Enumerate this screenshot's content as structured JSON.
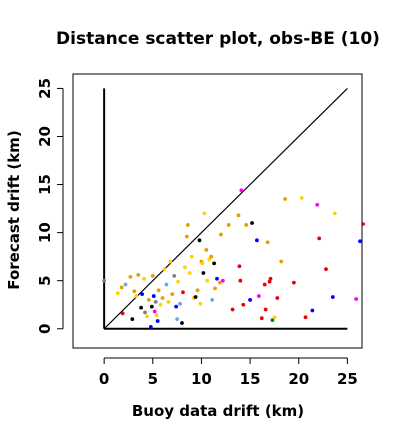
{
  "chart_data": {
    "type": "scatter",
    "title": "Distance scatter plot, obs-BE (10)",
    "xlabel": "Buoy data drift (km)",
    "ylabel": "Forecast drift (km)",
    "xlim": [
      -3.2,
      26.5
    ],
    "ylim": [
      -2.0,
      26.5
    ],
    "xticks": [
      0,
      5,
      10,
      15,
      20,
      25
    ],
    "yticks": [
      0,
      5,
      10,
      15,
      20,
      25
    ],
    "xtick_labels": [
      "0",
      "5",
      "10",
      "15",
      "20",
      "25"
    ],
    "ytick_labels": [
      "0",
      "5",
      "10",
      "15",
      "20",
      "25"
    ],
    "grid": false,
    "reference_lines": [
      {
        "name": "identity",
        "x": [
          0,
          25
        ],
        "y": [
          0,
          25
        ]
      },
      {
        "name": "x-zero",
        "x": [
          0,
          0
        ],
        "y": [
          0,
          25
        ]
      },
      {
        "name": "y-zero",
        "x": [
          0,
          25
        ],
        "y": [
          0,
          0
        ]
      }
    ],
    "points": [
      {
        "x": 0.0,
        "y": 5.0,
        "color": "#7f7f7f"
      },
      {
        "x": 1.4,
        "y": 3.7,
        "color": "#ffd200"
      },
      {
        "x": 1.8,
        "y": 4.3,
        "color": "#e69f00"
      },
      {
        "x": 1.9,
        "y": 1.6,
        "color": "#e8000b"
      },
      {
        "x": 2.2,
        "y": 4.6,
        "color": "#6aa6e8"
      },
      {
        "x": 2.7,
        "y": 5.4,
        "color": "#e69f00"
      },
      {
        "x": 2.9,
        "y": 1.0,
        "color": "#000000"
      },
      {
        "x": 3.1,
        "y": 3.9,
        "color": "#e69f00"
      },
      {
        "x": 3.3,
        "y": 3.4,
        "color": "#ffd200"
      },
      {
        "x": 3.5,
        "y": 5.6,
        "color": "#e69f00"
      },
      {
        "x": 3.8,
        "y": 2.2,
        "color": "#000000"
      },
      {
        "x": 3.9,
        "y": 3.6,
        "color": "#0000ff"
      },
      {
        "x": 4.1,
        "y": 5.2,
        "color": "#ffd200"
      },
      {
        "x": 4.2,
        "y": 1.7,
        "color": "#7f7f7f"
      },
      {
        "x": 4.4,
        "y": 1.3,
        "color": "#ffd200"
      },
      {
        "x": 4.6,
        "y": 3.0,
        "color": "#e69f00"
      },
      {
        "x": 4.8,
        "y": 0.2,
        "color": "#0000ff"
      },
      {
        "x": 4.9,
        "y": 2.3,
        "color": "#000000"
      },
      {
        "x": 5.0,
        "y": 5.5,
        "color": "#e69f00"
      },
      {
        "x": 5.1,
        "y": 3.4,
        "color": "#0000ff"
      },
      {
        "x": 5.2,
        "y": 1.8,
        "color": "#ff00ff"
      },
      {
        "x": 5.3,
        "y": 2.8,
        "color": "#7f7f7f"
      },
      {
        "x": 5.4,
        "y": 1.4,
        "color": "#ffd200"
      },
      {
        "x": 5.5,
        "y": 0.8,
        "color": "#0000ff"
      },
      {
        "x": 5.6,
        "y": 4.0,
        "color": "#e69f00"
      },
      {
        "x": 5.8,
        "y": 2.5,
        "color": "#ffd200"
      },
      {
        "x": 6.0,
        "y": 3.2,
        "color": "#e69f00"
      },
      {
        "x": 6.2,
        "y": 6.2,
        "color": "#ffd200"
      },
      {
        "x": 6.4,
        "y": 4.6,
        "color": "#6aa6e8"
      },
      {
        "x": 6.6,
        "y": 2.8,
        "color": "#ffd200"
      },
      {
        "x": 6.8,
        "y": 7.0,
        "color": "#ffd200"
      },
      {
        "x": 7.0,
        "y": 3.6,
        "color": "#e69f00"
      },
      {
        "x": 7.2,
        "y": 5.5,
        "color": "#7f7f7f"
      },
      {
        "x": 7.4,
        "y": 2.3,
        "color": "#0000ff"
      },
      {
        "x": 7.5,
        "y": 1.0,
        "color": "#6aa6e8"
      },
      {
        "x": 7.6,
        "y": 4.9,
        "color": "#ffd200"
      },
      {
        "x": 7.8,
        "y": 2.6,
        "color": "#6aa6e8"
      },
      {
        "x": 8.0,
        "y": 0.6,
        "color": "#000000"
      },
      {
        "x": 8.1,
        "y": 3.8,
        "color": "#e8000b"
      },
      {
        "x": 8.3,
        "y": 6.4,
        "color": "#ffd200"
      },
      {
        "x": 8.5,
        "y": 9.6,
        "color": "#e69f00"
      },
      {
        "x": 8.6,
        "y": 10.8,
        "color": "#e69f00"
      },
      {
        "x": 8.8,
        "y": 5.8,
        "color": "#ffd200"
      },
      {
        "x": 9.0,
        "y": 7.5,
        "color": "#ffd200"
      },
      {
        "x": 9.2,
        "y": 3.2,
        "color": "#ffd200"
      },
      {
        "x": 9.4,
        "y": 3.3,
        "color": "#000000"
      },
      {
        "x": 9.6,
        "y": 4.0,
        "color": "#e69f00"
      },
      {
        "x": 9.8,
        "y": 9.2,
        "color": "#000000"
      },
      {
        "x": 9.9,
        "y": 2.6,
        "color": "#ffd200"
      },
      {
        "x": 10.0,
        "y": 7.0,
        "color": "#e69f00"
      },
      {
        "x": 10.1,
        "y": 6.8,
        "color": "#ffd200"
      },
      {
        "x": 10.2,
        "y": 5.8,
        "color": "#000000"
      },
      {
        "x": 10.3,
        "y": 12.0,
        "color": "#ffd200"
      },
      {
        "x": 10.5,
        "y": 8.2,
        "color": "#e69f00"
      },
      {
        "x": 10.6,
        "y": 5.0,
        "color": "#ffd200"
      },
      {
        "x": 10.8,
        "y": 7.2,
        "color": "#ffd200"
      },
      {
        "x": 11.0,
        "y": 7.5,
        "color": "#e69f00"
      },
      {
        "x": 11.1,
        "y": 3.0,
        "color": "#6aa6e8"
      },
      {
        "x": 11.3,
        "y": 6.8,
        "color": "#000000"
      },
      {
        "x": 11.4,
        "y": 4.2,
        "color": "#e69f00"
      },
      {
        "x": 11.6,
        "y": 5.2,
        "color": "#0000ff"
      },
      {
        "x": 11.9,
        "y": 4.8,
        "color": "#e69f00"
      },
      {
        "x": 12.0,
        "y": 9.8,
        "color": "#e69f00"
      },
      {
        "x": 12.2,
        "y": 5.0,
        "color": "#ff00ff"
      },
      {
        "x": 12.8,
        "y": 10.8,
        "color": "#e69f00"
      },
      {
        "x": 13.2,
        "y": 2.0,
        "color": "#e8000b"
      },
      {
        "x": 13.8,
        "y": 11.8,
        "color": "#e69f00"
      },
      {
        "x": 13.9,
        "y": 6.5,
        "color": "#e8000b"
      },
      {
        "x": 14.0,
        "y": 5.0,
        "color": "#e8000b"
      },
      {
        "x": 14.1,
        "y": 14.4,
        "color": "#ff00ff"
      },
      {
        "x": 14.3,
        "y": 2.5,
        "color": "#e8000b"
      },
      {
        "x": 14.6,
        "y": 10.8,
        "color": "#e69f00"
      },
      {
        "x": 15.0,
        "y": 3.0,
        "color": "#0000ff"
      },
      {
        "x": 15.2,
        "y": 11.0,
        "color": "#000000"
      },
      {
        "x": 15.7,
        "y": 9.2,
        "color": "#0000ff"
      },
      {
        "x": 15.9,
        "y": 3.4,
        "color": "#ff00ff"
      },
      {
        "x": 16.2,
        "y": 1.1,
        "color": "#e8000b"
      },
      {
        "x": 16.5,
        "y": 4.6,
        "color": "#e8000b"
      },
      {
        "x": 16.6,
        "y": 2.0,
        "color": "#e8000b"
      },
      {
        "x": 16.8,
        "y": 9.0,
        "color": "#e69f00"
      },
      {
        "x": 17.0,
        "y": 4.9,
        "color": "#e8000b"
      },
      {
        "x": 17.1,
        "y": 5.2,
        "color": "#e8000b"
      },
      {
        "x": 17.3,
        "y": 0.9,
        "color": "#008000"
      },
      {
        "x": 17.5,
        "y": 1.2,
        "color": "#ffd200"
      },
      {
        "x": 17.8,
        "y": 3.2,
        "color": "#e8000b"
      },
      {
        "x": 18.2,
        "y": 7.0,
        "color": "#e69f00"
      },
      {
        "x": 18.6,
        "y": 13.5,
        "color": "#e69f00"
      },
      {
        "x": 19.5,
        "y": 4.8,
        "color": "#e8000b"
      },
      {
        "x": 20.3,
        "y": 13.6,
        "color": "#ffd200"
      },
      {
        "x": 20.7,
        "y": 1.2,
        "color": "#e8000b"
      },
      {
        "x": 21.4,
        "y": 1.9,
        "color": "#0000ff"
      },
      {
        "x": 21.9,
        "y": 12.9,
        "color": "#ff00ff"
      },
      {
        "x": 22.1,
        "y": 9.4,
        "color": "#e8000b"
      },
      {
        "x": 22.8,
        "y": 6.2,
        "color": "#e8000b"
      },
      {
        "x": 23.5,
        "y": 3.3,
        "color": "#0000ff"
      },
      {
        "x": 23.7,
        "y": 12.0,
        "color": "#ffd200"
      },
      {
        "x": 25.9,
        "y": 3.1,
        "color": "#ff00ff"
      },
      {
        "x": 26.3,
        "y": 9.1,
        "color": "#0000ff"
      },
      {
        "x": 26.6,
        "y": 10.9,
        "color": "#e8000b"
      }
    ]
  }
}
